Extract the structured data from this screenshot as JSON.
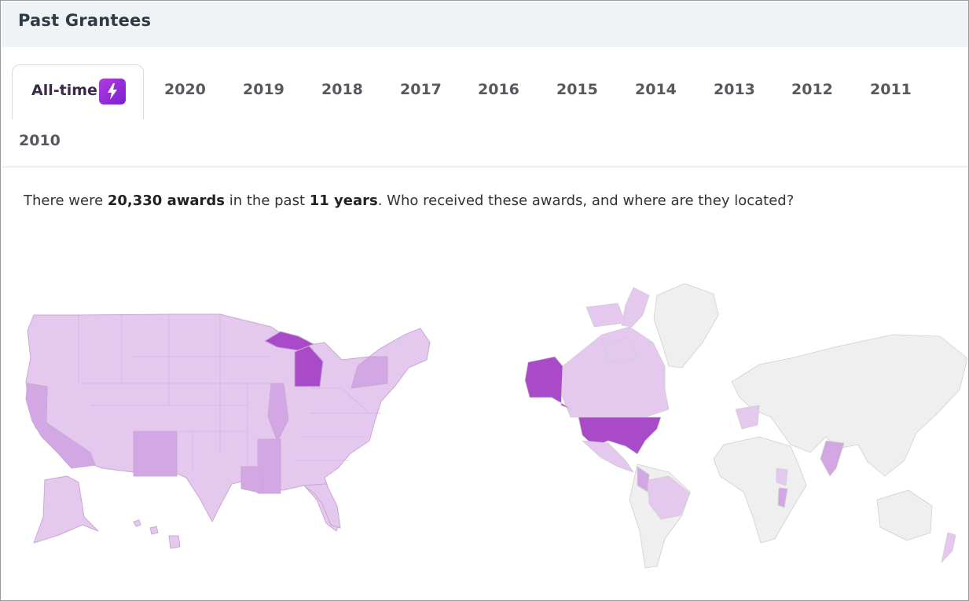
{
  "header": {
    "title": "Past Grantees"
  },
  "tabs": {
    "active": {
      "label": "All-time",
      "icon": "lightning-bolt-icon"
    },
    "years": [
      "2020",
      "2019",
      "2018",
      "2017",
      "2016",
      "2015",
      "2014",
      "2013",
      "2012",
      "2011",
      "2010"
    ]
  },
  "summary": {
    "pre": "There were ",
    "awards": "20,330 awards",
    "mid": " in the past ",
    "years": "11 years",
    "post": ". Who received these awards, and where are they located?"
  },
  "colors": {
    "light": "#e4c8ee",
    "medium": "#d3a6e4",
    "dark": "#a94ac8",
    "none": "#efefef",
    "border": "#c9a8d6"
  }
}
